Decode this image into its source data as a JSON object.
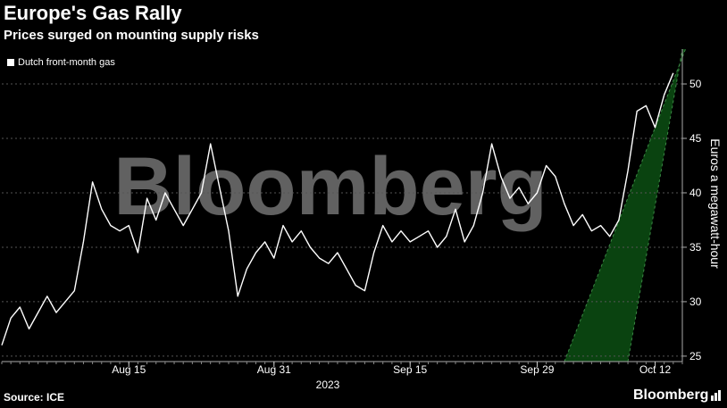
{
  "header": {
    "title": "Europe's Gas Rally",
    "subtitle": "Prices surged on mounting supply risks"
  },
  "legend": {
    "label": "Dutch front-month gas"
  },
  "footer": {
    "source": "Source: ICE",
    "brand": "Bloomberg"
  },
  "watermark": "Bloomberg",
  "colors": {
    "background": "#000000",
    "line": "#ffffff",
    "grid": "#555555",
    "band_fill": "#0b4a12",
    "band_edge": "#3b8a45"
  },
  "chart_data": {
    "type": "line",
    "title": "Europe's Gas Rally",
    "subtitle": "Prices surged on mounting supply risks",
    "ylabel": "Euros a megawatt-hour",
    "xlabel": "2023",
    "ylim": [
      24.5,
      53.2
    ],
    "y_ticks": [
      25,
      30,
      35,
      40,
      45,
      50
    ],
    "x_range": [
      "2023-08-01",
      "2023-10-15"
    ],
    "x_ticks": [
      {
        "date": "2023-08-15",
        "label": "Aug 15"
      },
      {
        "date": "2023-08-31",
        "label": "Aug 31"
      },
      {
        "date": "2023-09-15",
        "label": "Sep 15"
      },
      {
        "date": "2023-09-29",
        "label": "Sep 29"
      },
      {
        "date": "2023-10-12",
        "label": "Oct 12"
      }
    ],
    "x_year_label": "2023",
    "grid": "horizontal dashed",
    "legend_position": "top-left",
    "series": [
      {
        "name": "Dutch front-month gas",
        "points": [
          [
            "2023-08-01",
            26.0
          ],
          [
            "2023-08-02",
            28.5
          ],
          [
            "2023-08-03",
            29.5
          ],
          [
            "2023-08-04",
            27.5
          ],
          [
            "2023-08-05",
            29.0
          ],
          [
            "2023-08-06",
            30.5
          ],
          [
            "2023-08-07",
            29.0
          ],
          [
            "2023-08-08",
            30.0
          ],
          [
            "2023-08-09",
            31.0
          ],
          [
            "2023-08-10",
            35.5
          ],
          [
            "2023-08-11",
            41.0
          ],
          [
            "2023-08-12",
            38.5
          ],
          [
            "2023-08-13",
            37.0
          ],
          [
            "2023-08-14",
            36.5
          ],
          [
            "2023-08-15",
            37.0
          ],
          [
            "2023-08-16",
            34.5
          ],
          [
            "2023-08-17",
            39.5
          ],
          [
            "2023-08-18",
            37.5
          ],
          [
            "2023-08-19",
            40.0
          ],
          [
            "2023-08-20",
            38.5
          ],
          [
            "2023-08-21",
            37.0
          ],
          [
            "2023-08-22",
            38.5
          ],
          [
            "2023-08-23",
            40.0
          ],
          [
            "2023-08-24",
            44.5
          ],
          [
            "2023-08-25",
            40.5
          ],
          [
            "2023-08-26",
            36.5
          ],
          [
            "2023-08-27",
            30.5
          ],
          [
            "2023-08-28",
            33.0
          ],
          [
            "2023-08-29",
            34.5
          ],
          [
            "2023-08-30",
            35.5
          ],
          [
            "2023-08-31",
            34.0
          ],
          [
            "2023-09-01",
            37.0
          ],
          [
            "2023-09-02",
            35.5
          ],
          [
            "2023-09-03",
            36.5
          ],
          [
            "2023-09-04",
            35.0
          ],
          [
            "2023-09-05",
            34.0
          ],
          [
            "2023-09-06",
            33.5
          ],
          [
            "2023-09-07",
            34.5
          ],
          [
            "2023-09-08",
            33.0
          ],
          [
            "2023-09-09",
            31.5
          ],
          [
            "2023-09-10",
            31.0
          ],
          [
            "2023-09-11",
            34.5
          ],
          [
            "2023-09-12",
            37.0
          ],
          [
            "2023-09-13",
            35.5
          ],
          [
            "2023-09-14",
            36.5
          ],
          [
            "2023-09-15",
            35.5
          ],
          [
            "2023-09-16",
            36.0
          ],
          [
            "2023-09-17",
            36.5
          ],
          [
            "2023-09-18",
            35.0
          ],
          [
            "2023-09-19",
            36.0
          ],
          [
            "2023-09-20",
            38.5
          ],
          [
            "2023-09-21",
            35.5
          ],
          [
            "2023-09-22",
            37.0
          ],
          [
            "2023-09-23",
            40.0
          ],
          [
            "2023-09-24",
            44.5
          ],
          [
            "2023-09-25",
            41.5
          ],
          [
            "2023-09-26",
            39.5
          ],
          [
            "2023-09-27",
            40.5
          ],
          [
            "2023-09-28",
            39.0
          ],
          [
            "2023-09-29",
            40.0
          ],
          [
            "2023-09-30",
            42.5
          ],
          [
            "2023-10-01",
            41.5
          ],
          [
            "2023-10-02",
            39.0
          ],
          [
            "2023-10-03",
            37.0
          ],
          [
            "2023-10-04",
            38.0
          ],
          [
            "2023-10-05",
            36.5
          ],
          [
            "2023-10-06",
            37.0
          ],
          [
            "2023-10-07",
            36.0
          ],
          [
            "2023-10-08",
            37.5
          ],
          [
            "2023-10-09",
            42.0
          ],
          [
            "2023-10-10",
            47.5
          ],
          [
            "2023-10-11",
            48.0
          ],
          [
            "2023-10-12",
            46.0
          ],
          [
            "2023-10-13",
            49.0
          ],
          [
            "2023-10-14",
            51.0
          ]
        ]
      }
    ],
    "highlight_band": {
      "description": "rising highlight channel",
      "bottom": [
        [
          "2023-10-02",
          24.5
        ],
        [
          "2023-10-12",
          46.0
        ]
      ],
      "top": [
        [
          "2023-10-09",
          24.5
        ],
        [
          "2023-10-15",
          53.2
        ]
      ]
    }
  }
}
